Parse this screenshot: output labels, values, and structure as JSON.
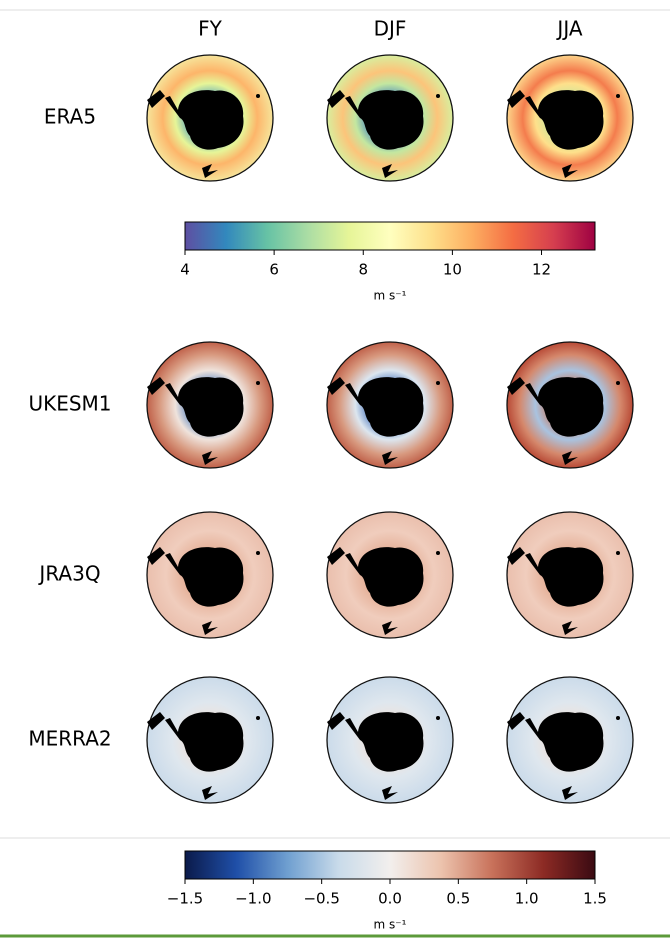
{
  "columns": [
    "FY",
    "DJF",
    "JJA"
  ],
  "rows": [
    "ERA5",
    "UKESM1",
    "JRA3Q",
    "MERRA2"
  ],
  "colorbars": [
    {
      "lim": [
        4,
        13.2
      ],
      "ticks": [
        4,
        6,
        8,
        10,
        12
      ],
      "label": "m s⁻¹",
      "colors": [
        "#5e4fa2",
        "#3288bd",
        "#66c2a5",
        "#abdda4",
        "#e6f598",
        "#ffffbf",
        "#fee08b",
        "#fdae61",
        "#f46d43",
        "#d53e4f",
        "#9e0142"
      ]
    },
    {
      "lim": [
        -1.5,
        1.5
      ],
      "ticks": [
        {
          "value": -1.5,
          "label": "−1.5"
        },
        {
          "value": -1,
          "label": "−1.0"
        },
        {
          "value": -0.5,
          "label": "−0.5"
        },
        {
          "value": 0,
          "label": "0.0"
        },
        0.5,
        {
          "value": 1,
          "label": "1.0"
        },
        1.5
      ],
      "label": "m s⁻¹",
      "colors": [
        "#0b1a4a",
        "#1f4fa8",
        "#6f9fd0",
        "#c9dbea",
        "#f2efed",
        "#ecc3ad",
        "#c8715a",
        "#8c2a24",
        "#3a0a12"
      ]
    }
  ]
}
